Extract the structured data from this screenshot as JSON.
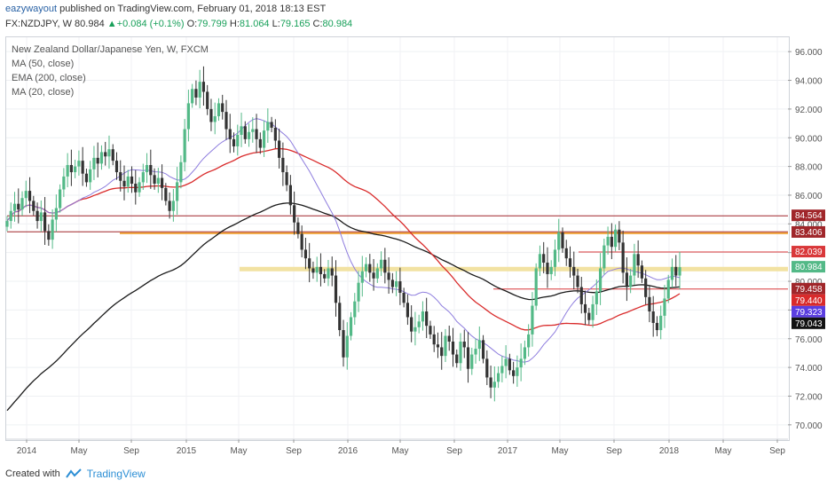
{
  "header": {
    "author": "eazywayout",
    "published": "published on TradingView.com, February 01, 2018 18:13 EST",
    "symbol": "FX:NZDJPY, W",
    "last": "80.984",
    "change": "+0.084 (+0.1%)",
    "open_label": "O:",
    "open": "79.799",
    "high_label": "H:",
    "high": "81.064",
    "low_label": "L:",
    "low": "79.165",
    "close_label": "C:",
    "close": "80.984"
  },
  "legend": {
    "title": "New Zealand Dollar/Japanese Yen, W, FXCM",
    "items": [
      "MA (50, close)",
      "EMA (200, close)",
      "MA (20, close)"
    ]
  },
  "footer": {
    "created_with": "Created with",
    "brand": "TradingView"
  },
  "colors": {
    "bull": "#53b987",
    "bear": "#333333",
    "ma50": "#d92b2b",
    "ema200": "#1a1a1a",
    "ma20": "#8e7dde",
    "hline_dark_red": "#a0262a",
    "hline_orange": "#f0a33a",
    "hline_yellow": "#f2e2a2",
    "hline_red": "#d9383a"
  },
  "chart_data": {
    "type": "candlestick",
    "timeframe": "W",
    "x_ticks": [
      "2014",
      "May",
      "Sep",
      "2015",
      "May",
      "Sep",
      "2016",
      "May",
      "Sep",
      "2017",
      "May",
      "Sep",
      "2018",
      "May",
      "Sep"
    ],
    "y_ticks": [
      "96.000",
      "94.000",
      "92.000",
      "90.000",
      "88.000",
      "86.000",
      "84.000",
      "82.000",
      "80.000",
      "78.000",
      "76.000",
      "74.000",
      "72.000",
      "70.000"
    ],
    "ylim": [
      69.0,
      97.0
    ],
    "price_labels": [
      {
        "value": 84.564,
        "text": "84.564",
        "color": "#a0262a"
      },
      {
        "value": 83.406,
        "text": "83.406",
        "color": "#a0262a"
      },
      {
        "value": 82.039,
        "text": "82.039",
        "color": "#d9383a"
      },
      {
        "value": 80.984,
        "text": "80.984",
        "color": "#53b987"
      },
      {
        "value": 79.458,
        "text": "79.458",
        "color": "#a0262a"
      },
      {
        "value": 79.44,
        "text": "79.440",
        "color": "#d92b2b"
      },
      {
        "value": 79.323,
        "text": "79.323",
        "color": "#5b3ee0"
      },
      {
        "value": 79.043,
        "text": "79.043",
        "color": "#111111"
      }
    ],
    "horizontal_lines": [
      {
        "value": 84.564,
        "x_start": "2014-01",
        "color": "#a0262a"
      },
      {
        "value": 83.45,
        "x_start": "2014-01",
        "color": "#a0262a"
      },
      {
        "value": 83.35,
        "x_start": "2014-09",
        "color": "#f0a33a"
      },
      {
        "value": 80.85,
        "x_start": "2015-05",
        "color": "#f2e2a2"
      },
      {
        "value": 79.458,
        "x_start": "2016-12",
        "color": "#d9383a"
      },
      {
        "value": 82.039,
        "x_start": "2017-06",
        "color": "#d9383a"
      }
    ],
    "weekly_closes": [
      84.2,
      84.9,
      85.4,
      85.0,
      85.8,
      86.3,
      85.6,
      84.9,
      84.2,
      84.8,
      83.5,
      82.9,
      84.3,
      85.1,
      86.4,
      87.3,
      88.1,
      87.6,
      88.0,
      88.4,
      87.5,
      86.9,
      87.8,
      88.6,
      88.2,
      89.0,
      88.7,
      89.2,
      88.4,
      87.6,
      87.0,
      86.6,
      87.3,
      86.8,
      86.2,
      86.9,
      87.6,
      88.1,
      87.4,
      86.8,
      87.2,
      86.5,
      85.6,
      84.9,
      85.6,
      86.9,
      88.3,
      90.6,
      92.4,
      93.4,
      92.8,
      93.9,
      93.2,
      92.0,
      91.1,
      91.5,
      92.4,
      91.8,
      90.6,
      89.9,
      89.4,
      90.2,
      90.8,
      89.9,
      90.4,
      90.6,
      89.9,
      89.3,
      90.5,
      91.1,
      90.7,
      89.8,
      88.6,
      87.6,
      86.7,
      85.3,
      84.1,
      83.3,
      82.2,
      81.6,
      80.9,
      80.6,
      81.0,
      80.5,
      80.2,
      80.9,
      80.4,
      78.5,
      76.6,
      74.7,
      76.2,
      77.5,
      78.6,
      79.9,
      80.7,
      81.2,
      80.6,
      80.2,
      80.9,
      81.5,
      80.6,
      80.1,
      79.6,
      80.0,
      79.2,
      78.5,
      77.5,
      76.5,
      76.8,
      77.2,
      77.9,
      76.9,
      76.3,
      75.6,
      75.4,
      74.8,
      76.2,
      75.8,
      74.9,
      74.3,
      75.8,
      75.4,
      73.9,
      74.9,
      75.3,
      75.9,
      74.6,
      73.3,
      72.6,
      73.0,
      73.6,
      74.1,
      74.6,
      73.8,
      73.4,
      74.0,
      74.6,
      75.4,
      76.3,
      78.3,
      80.9,
      81.9,
      81.3,
      80.5,
      81.0,
      82.2,
      83.4,
      82.3,
      81.6,
      81.0,
      80.4,
      79.6,
      78.4,
      77.8,
      77.3,
      78.4,
      79.3,
      80.9,
      82.5,
      83.1,
      82.4,
      83.6,
      82.7,
      80.6,
      79.6,
      80.4,
      81.9,
      81.1,
      80.2,
      78.9,
      77.9,
      77.1,
      76.6,
      77.6,
      78.8,
      80.1,
      81.0,
      80.4,
      80.984
    ]
  }
}
